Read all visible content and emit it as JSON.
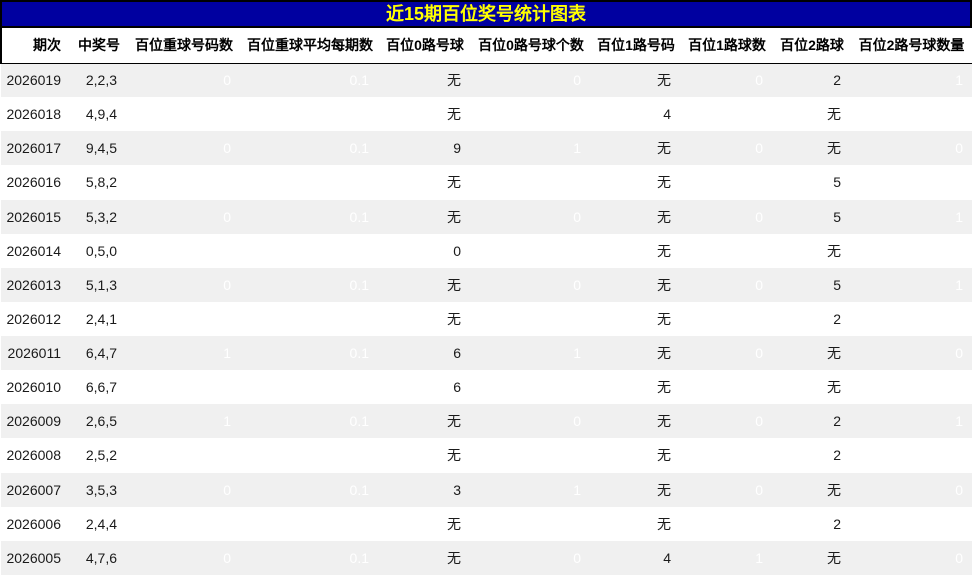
{
  "title": "近15期百位奖号统计图表",
  "colors": {
    "title-bg": "#0000A0",
    "title-text": "#FFFF00",
    "cell-blue": "#000099",
    "cell-red": "#990000",
    "row-stripe": "#F0F0F0",
    "row-white": "#FFFFFF",
    "header-text": "#000000",
    "cell-light-text": "#1A1A1A",
    "cell-dark-text": "#FFFFFF"
  },
  "chart_data": {
    "type": "table",
    "title": "近15期百位奖号统计图表",
    "columns": [
      "期次",
      "中奖号",
      "百位重球号码数",
      "百位重球平均每期数",
      "百位0路号球",
      "百位0路号球个数",
      "百位1路号码",
      "百位1路球数",
      "百位2路球",
      "百位2路号球数量"
    ],
    "column_keys": [
      "period",
      "winning-number",
      "repeat-ball-count",
      "repeat-ball-avg",
      "route0-ball",
      "route0-count",
      "route1-ball",
      "route1-count",
      "route2-ball",
      "route2-count"
    ],
    "colored_column_indices": [
      2,
      3,
      5,
      7,
      9
    ],
    "color_rule": "count columns: value 1 -> dark red cell, value 0 or 0.1 -> dark blue cell, white text; other columns light striped rows with dark text",
    "none_symbol": "无",
    "rows": [
      [
        "2026019",
        "2,2,3",
        "0",
        "0.1",
        "无",
        "0",
        "无",
        "0",
        "2",
        "1"
      ],
      [
        "2026018",
        "4,9,4",
        "0",
        "0.1",
        "无",
        "0",
        "4",
        "1",
        "无",
        "0"
      ],
      [
        "2026017",
        "9,4,5",
        "0",
        "0.1",
        "9",
        "1",
        "无",
        "0",
        "无",
        "0"
      ],
      [
        "2026016",
        "5,8,2",
        "1",
        "0.1",
        "无",
        "0",
        "无",
        "0",
        "5",
        "1"
      ],
      [
        "2026015",
        "5,3,2",
        "0",
        "0.1",
        "无",
        "0",
        "无",
        "0",
        "5",
        "1"
      ],
      [
        "2026014",
        "0,5,0",
        "0",
        "0.1",
        "0",
        "1",
        "无",
        "0",
        "无",
        "0"
      ],
      [
        "2026013",
        "5,1,3",
        "0",
        "0.1",
        "无",
        "0",
        "无",
        "0",
        "5",
        "1"
      ],
      [
        "2026012",
        "2,4,1",
        "0",
        "0.1",
        "无",
        "0",
        "无",
        "0",
        "2",
        "1"
      ],
      [
        "2026011",
        "6,4,7",
        "1",
        "0.1",
        "6",
        "1",
        "无",
        "0",
        "无",
        "0"
      ],
      [
        "2026010",
        "6,6,7",
        "0",
        "0.1",
        "6",
        "1",
        "无",
        "0",
        "无",
        "0"
      ],
      [
        "2026009",
        "2,6,5",
        "1",
        "0.1",
        "无",
        "0",
        "无",
        "0",
        "2",
        "1"
      ],
      [
        "2026008",
        "2,5,2",
        "0",
        "0.1",
        "无",
        "0",
        "无",
        "0",
        "2",
        "1"
      ],
      [
        "2026007",
        "3,5,3",
        "0",
        "0.1",
        "3",
        "1",
        "无",
        "0",
        "无",
        "0"
      ],
      [
        "2026006",
        "2,4,4",
        "0",
        "0.1",
        "无",
        "0",
        "无",
        "0",
        "2",
        "1"
      ],
      [
        "2026005",
        "4,7,6",
        "0",
        "0.1",
        "无",
        "0",
        "4",
        "1",
        "无",
        "0"
      ]
    ]
  }
}
